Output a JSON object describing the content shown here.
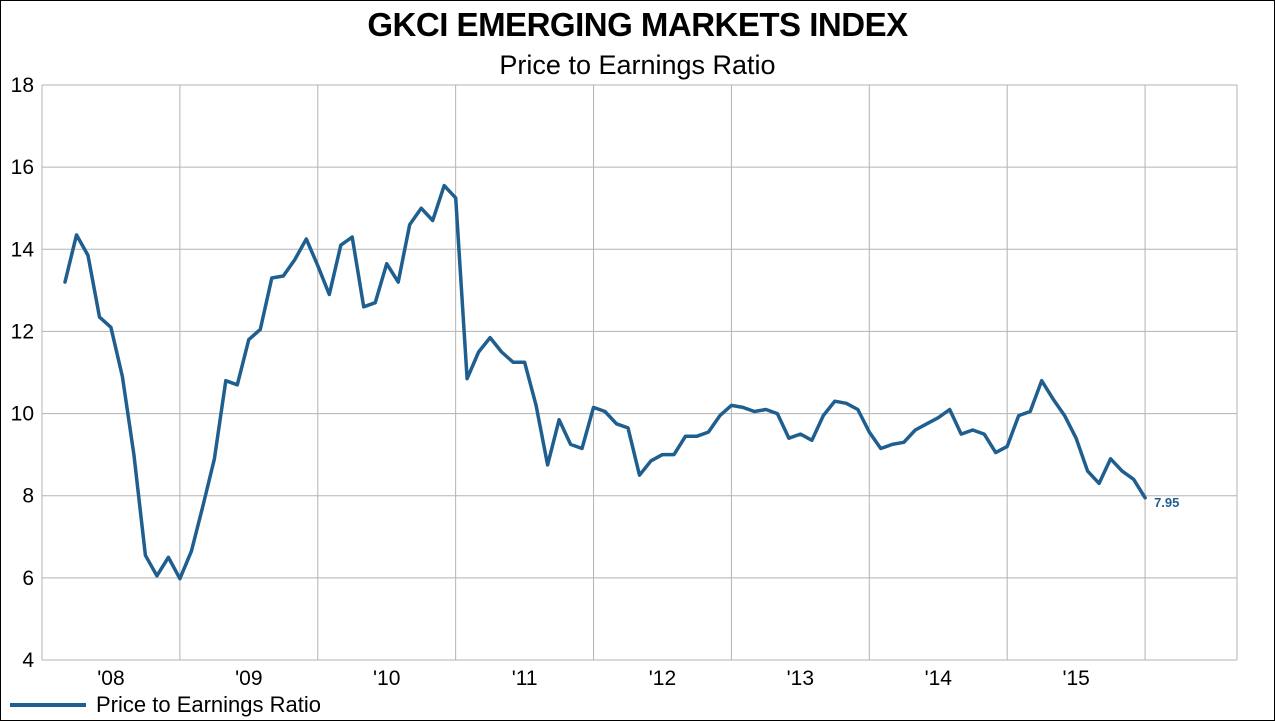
{
  "chart_data": {
    "type": "line",
    "title": "GKCI EMERGING MARKETS INDEX",
    "subtitle": "Price to Earnings Ratio",
    "ylim": [
      4,
      18
    ],
    "yticks": [
      4,
      6,
      8,
      10,
      12,
      14,
      16,
      18
    ],
    "xlim": [
      "2007-07",
      "2016-03"
    ],
    "xtick_labels": [
      "'08",
      "'09",
      "'10",
      "'11",
      "'12",
      "'13",
      "'14",
      "'15"
    ],
    "grid": true,
    "legend": "bottom-left",
    "end_label": "7.95",
    "series": [
      {
        "name": "Price to Earnings Ratio",
        "color": "#1f5f8f",
        "points": [
          [
            "2007-09",
            13.2
          ],
          [
            "2007-10",
            14.35
          ],
          [
            "2007-11",
            13.85
          ],
          [
            "2007-12",
            12.35
          ],
          [
            "2008-01",
            12.1
          ],
          [
            "2008-02",
            10.9
          ],
          [
            "2008-03",
            9.0
          ],
          [
            "2008-04",
            6.55
          ],
          [
            "2008-05",
            6.05
          ],
          [
            "2008-06",
            6.5
          ],
          [
            "2008-07",
            5.98
          ],
          [
            "2008-08",
            6.65
          ],
          [
            "2008-09",
            7.75
          ],
          [
            "2008-10",
            8.9
          ],
          [
            "2008-11",
            10.8
          ],
          [
            "2008-12",
            10.7
          ],
          [
            "2009-01",
            11.8
          ],
          [
            "2009-02",
            12.05
          ],
          [
            "2009-03",
            13.3
          ],
          [
            "2009-04",
            13.35
          ],
          [
            "2009-05",
            13.75
          ],
          [
            "2009-06",
            14.25
          ],
          [
            "2009-07",
            13.6
          ],
          [
            "2009-08",
            12.9
          ],
          [
            "2009-09",
            14.1
          ],
          [
            "2009-10",
            14.3
          ],
          [
            "2009-11",
            12.6
          ],
          [
            "2009-12",
            12.7
          ],
          [
            "2010-01",
            13.65
          ],
          [
            "2010-02",
            13.2
          ],
          [
            "2010-03",
            14.6
          ],
          [
            "2010-04",
            15.0
          ],
          [
            "2010-05",
            14.7
          ],
          [
            "2010-06",
            15.55
          ],
          [
            "2010-07",
            15.25
          ],
          [
            "2010-08",
            10.85
          ],
          [
            "2010-09",
            11.5
          ],
          [
            "2010-10",
            11.85
          ],
          [
            "2010-11",
            11.5
          ],
          [
            "2010-12",
            11.25
          ],
          [
            "2011-01",
            11.25
          ],
          [
            "2011-02",
            10.2
          ],
          [
            "2011-03",
            8.75
          ],
          [
            "2011-04",
            9.85
          ],
          [
            "2011-05",
            9.25
          ],
          [
            "2011-06",
            9.15
          ],
          [
            "2011-07",
            10.15
          ],
          [
            "2011-08",
            10.05
          ],
          [
            "2011-09",
            9.75
          ],
          [
            "2011-10",
            9.65
          ],
          [
            "2011-11",
            8.5
          ],
          [
            "2011-12",
            8.85
          ],
          [
            "2012-01",
            9.0
          ],
          [
            "2012-02",
            9.0
          ],
          [
            "2012-03",
            9.45
          ],
          [
            "2012-04",
            9.45
          ],
          [
            "2012-05",
            9.55
          ],
          [
            "2012-06",
            9.95
          ],
          [
            "2012-07",
            10.2
          ],
          [
            "2012-08",
            10.15
          ],
          [
            "2012-09",
            10.05
          ],
          [
            "2012-10",
            10.1
          ],
          [
            "2012-11",
            10.0
          ],
          [
            "2012-12",
            9.4
          ],
          [
            "2013-01",
            9.5
          ],
          [
            "2013-02",
            9.35
          ],
          [
            "2013-03",
            9.95
          ],
          [
            "2013-04",
            10.3
          ],
          [
            "2013-05",
            10.25
          ],
          [
            "2013-06",
            10.1
          ],
          [
            "2013-07",
            9.55
          ],
          [
            "2013-08",
            9.15
          ],
          [
            "2013-09",
            9.25
          ],
          [
            "2013-10",
            9.3
          ],
          [
            "2013-11",
            9.6
          ],
          [
            "2013-12",
            9.75
          ],
          [
            "2014-01",
            9.9
          ],
          [
            "2014-02",
            10.1
          ],
          [
            "2014-03",
            9.5
          ],
          [
            "2014-04",
            9.6
          ],
          [
            "2014-05",
            9.5
          ],
          [
            "2014-06",
            9.05
          ],
          [
            "2014-07",
            9.2
          ],
          [
            "2014-08",
            9.95
          ],
          [
            "2014-09",
            10.05
          ],
          [
            "2014-10",
            10.8
          ],
          [
            "2014-11",
            10.35
          ],
          [
            "2014-12",
            9.95
          ],
          [
            "2015-01",
            9.4
          ],
          [
            "2015-02",
            8.6
          ],
          [
            "2015-03",
            8.3
          ],
          [
            "2015-04",
            8.9
          ],
          [
            "2015-05",
            8.6
          ],
          [
            "2015-06",
            8.4
          ],
          [
            "2015-07",
            7.95
          ]
        ]
      }
    ]
  }
}
